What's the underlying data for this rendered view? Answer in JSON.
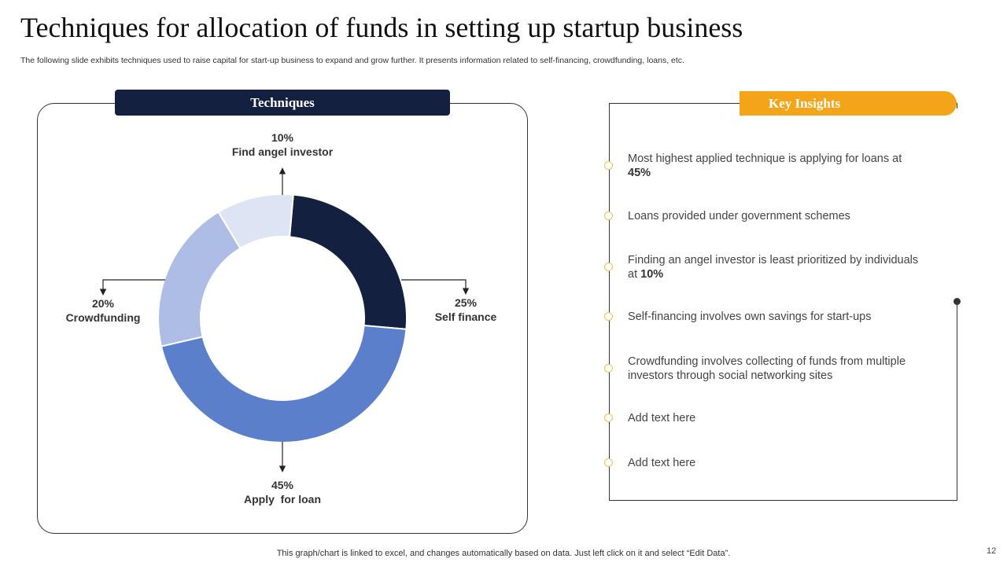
{
  "title": "Techniques for allocation of funds in setting up startup business",
  "subtitle": "The following slide exhibits techniques used to raise capital for start-up business to expand and grow further. It presents information related to self-financing, crowdfunding, loans, etc.",
  "left_header": "Techniques",
  "right_header": "Key Insights",
  "chart_data": {
    "type": "pie",
    "variant": "donut",
    "title": "Techniques",
    "slices": [
      {
        "label": "Self finance",
        "value": 25,
        "display": "25%",
        "color": "#13203f"
      },
      {
        "label": "Apply  for loan",
        "value": 45,
        "display": "45%",
        "color": "#5b7fcb"
      },
      {
        "label": "Crowdfunding",
        "value": 20,
        "display": "20%",
        "color": "#aebde6"
      },
      {
        "label": "Find angel investor",
        "value": 10,
        "display": "10%",
        "color": "#dde4f4"
      }
    ]
  },
  "insights": [
    {
      "text": "Most highest applied technique is applying for loans at ",
      "bold": "45%"
    },
    {
      "text": "Loans provided under government schemes",
      "bold": ""
    },
    {
      "text": "Finding an angel investor is least prioritized by individuals at ",
      "bold": "10%"
    },
    {
      "text": "Self-financing involves own savings for start-ups",
      "bold": ""
    },
    {
      "text": "Crowdfunding involves collecting of funds from multiple investors through social networking sites",
      "bold": ""
    },
    {
      "text": "Add text here",
      "bold": ""
    },
    {
      "text": "Add text here",
      "bold": ""
    }
  ],
  "footer": "This graph/chart is linked to excel,  and changes automatically based on data. Just left click on it and select “Edit Data”.",
  "page_number": "12"
}
